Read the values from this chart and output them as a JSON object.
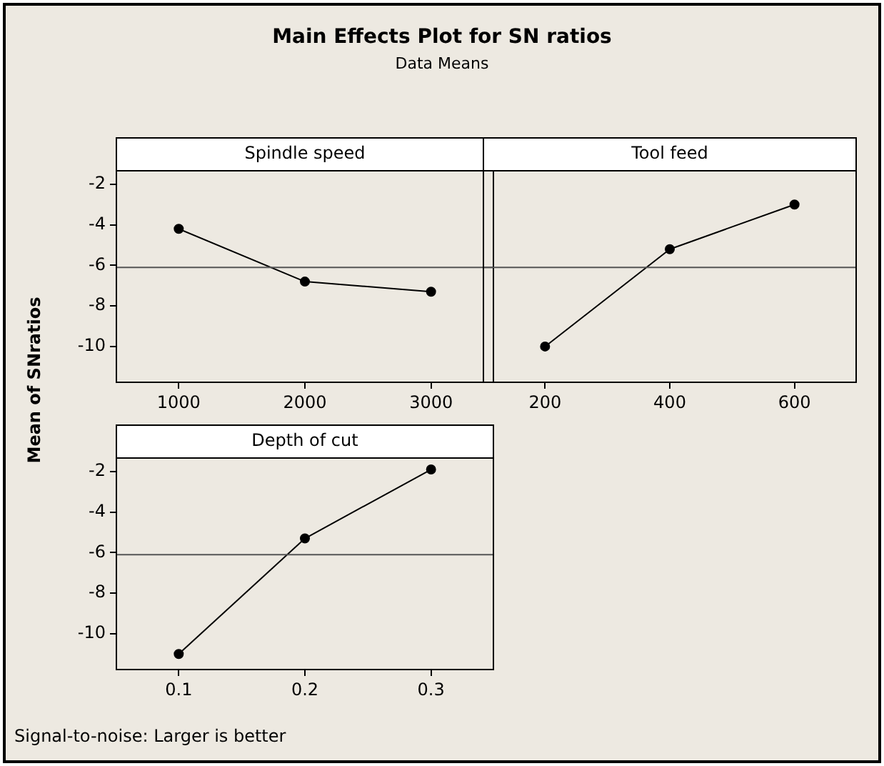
{
  "chart_data": [
    {
      "type": "line",
      "title": "Main Effects Plot for SN ratios",
      "subtitle": "Data Means",
      "xlabel": "Spindle speed",
      "ylabel": "Mean of SNratios",
      "x": [
        1000,
        2000,
        3000
      ],
      "series": [
        {
          "color": "#000000",
          "values": [
            -4.2,
            -6.8,
            -7.3
          ]
        }
      ],
      "xlim": [
        500,
        3500
      ],
      "xticks": [
        1000,
        2000,
        3000
      ],
      "ylim": [
        -11.8,
        -1.3
      ],
      "yticks": [
        -10,
        -8,
        -6,
        -4,
        -2
      ],
      "marker": "circle",
      "ref_lines": [
        {
          "axis": "y",
          "value": -6.1,
          "color": "#555555"
        }
      ]
    },
    {
      "type": "line",
      "xlabel": "Tool feed",
      "x": [
        200,
        400,
        600
      ],
      "series": [
        {
          "color": "#000000",
          "values": [
            -10.0,
            -5.2,
            -3.0
          ]
        }
      ],
      "xlim": [
        100,
        700
      ],
      "xticks": [
        200,
        400,
        600
      ],
      "ylim": [
        -11.8,
        -1.3
      ],
      "yticks": [
        -10,
        -8,
        -6,
        -4,
        -2
      ],
      "tick_labels": "x",
      "marker": "circle",
      "ref_lines": [
        {
          "axis": "y",
          "value": -6.1,
          "color": "#555555"
        }
      ]
    },
    {
      "type": "line",
      "xlabel": "Depth of cut",
      "x": [
        0.1,
        0.2,
        0.3
      ],
      "series": [
        {
          "color": "#000000",
          "values": [
            -11.0,
            -5.3,
            -1.9
          ]
        }
      ],
      "xlim": [
        0.05,
        0.35
      ],
      "xticks": [
        0.1,
        0.2,
        0.3
      ],
      "ylim": [
        -11.8,
        -1.3
      ],
      "yticks": [
        -10,
        -8,
        -6,
        -4,
        -2
      ],
      "marker": "circle",
      "ref_lines": [
        {
          "axis": "y",
          "value": -6.1,
          "color": "#555555"
        }
      ],
      "annotations": [
        "Signal-to-noise: Larger is better"
      ]
    }
  ]
}
